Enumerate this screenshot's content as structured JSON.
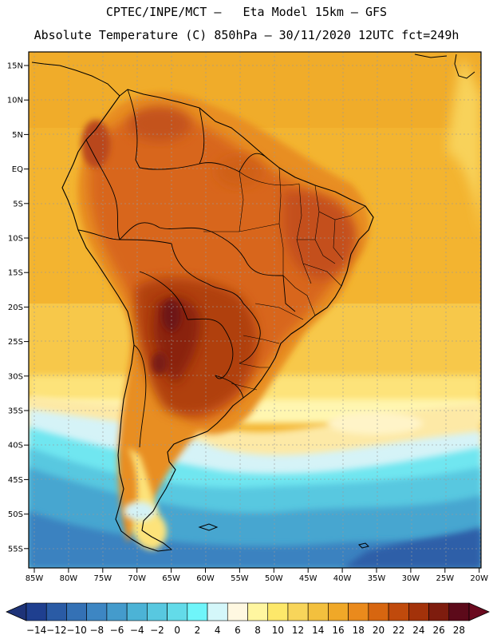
{
  "header": {
    "line1": "CPTEC/INPE/MCT –   Eta Model 15km – GFS",
    "line2": "Absolute Temperature (C) 850hPa – 30/11/2020 12UTC fct=249h"
  },
  "axes": {
    "lat_labels": [
      "15N",
      "10N",
      "5N",
      "EQ",
      "5S",
      "10S",
      "15S",
      "20S",
      "25S",
      "30S",
      "35S",
      "40S",
      "45S",
      "50S",
      "55S"
    ],
    "lon_labels": [
      "85W",
      "80W",
      "75W",
      "70W",
      "65W",
      "60W",
      "55W",
      "50W",
      "45W",
      "40W",
      "35W",
      "30W",
      "25W",
      "20W"
    ]
  },
  "colorbar": {
    "labels": [
      "-14",
      "-12",
      "-10",
      "-8",
      "-6",
      "-4",
      "-2",
      "0",
      "2",
      "4",
      "6",
      "8",
      "10",
      "12",
      "14",
      "16",
      "18",
      "20",
      "22",
      "24",
      "26",
      "28"
    ],
    "colors": [
      "#1f3f8f",
      "#2a5ba5",
      "#3471b5",
      "#3d86c3",
      "#449bcc",
      "#4cb3d6",
      "#58c8e0",
      "#63dbe9",
      "#6ff5fa",
      "#d4f7fa",
      "#fff8e1",
      "#fff6a0",
      "#fde86a",
      "#f8d55a",
      "#f3c03e",
      "#f0a828",
      "#ea8a1c",
      "#d76610",
      "#c04a0c",
      "#a3320a",
      "#7e1c0e",
      "#5c0a1a"
    ],
    "under_color": "#1e3378",
    "over_color": "#6b0a1f"
  }
}
